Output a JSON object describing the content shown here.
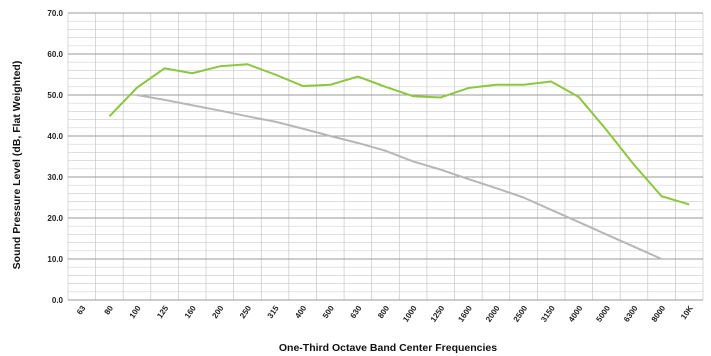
{
  "chart_data": {
    "type": "line",
    "title": "",
    "xlabel": "One-Third Octave Band Center Frequencies",
    "ylabel": "Sound Pressure Level (dB, Flat Weighted)",
    "ylim": [
      0,
      70
    ],
    "y_major_step": 10,
    "y_minor_step": 2,
    "grid": true,
    "legend": "none",
    "categories": [
      "63",
      "80",
      "100",
      "125",
      "160",
      "200",
      "250",
      "315",
      "400",
      "500",
      "630",
      "800",
      "1000",
      "1250",
      "1600",
      "2000",
      "2500",
      "3150",
      "4000",
      "5000",
      "6300",
      "8000",
      "10K"
    ],
    "y_tick_labels": [
      "0.0",
      "10.0",
      "20.0",
      "30.0",
      "40.0",
      "50.0",
      "60.0",
      "70.0"
    ],
    "series": [
      {
        "color": "#8dc63f",
        "values": [
          null,
          44.8,
          51.8,
          56.5,
          55.3,
          57.0,
          57.5,
          55.0,
          52.2,
          52.5,
          54.5,
          52.0,
          49.7,
          49.4,
          51.7,
          52.5,
          52.5,
          53.3,
          49.5,
          41.5,
          33.0,
          25.3,
          23.3
        ]
      },
      {
        "color": "#b7b7b7",
        "values": [
          null,
          null,
          50.0,
          48.8,
          47.5,
          46.2,
          44.8,
          43.5,
          41.8,
          40.0,
          38.3,
          36.4,
          33.8,
          31.8,
          29.5,
          27.3,
          25.0,
          22.0,
          19.0,
          16.0,
          13.0,
          10.0,
          null
        ]
      }
    ]
  }
}
